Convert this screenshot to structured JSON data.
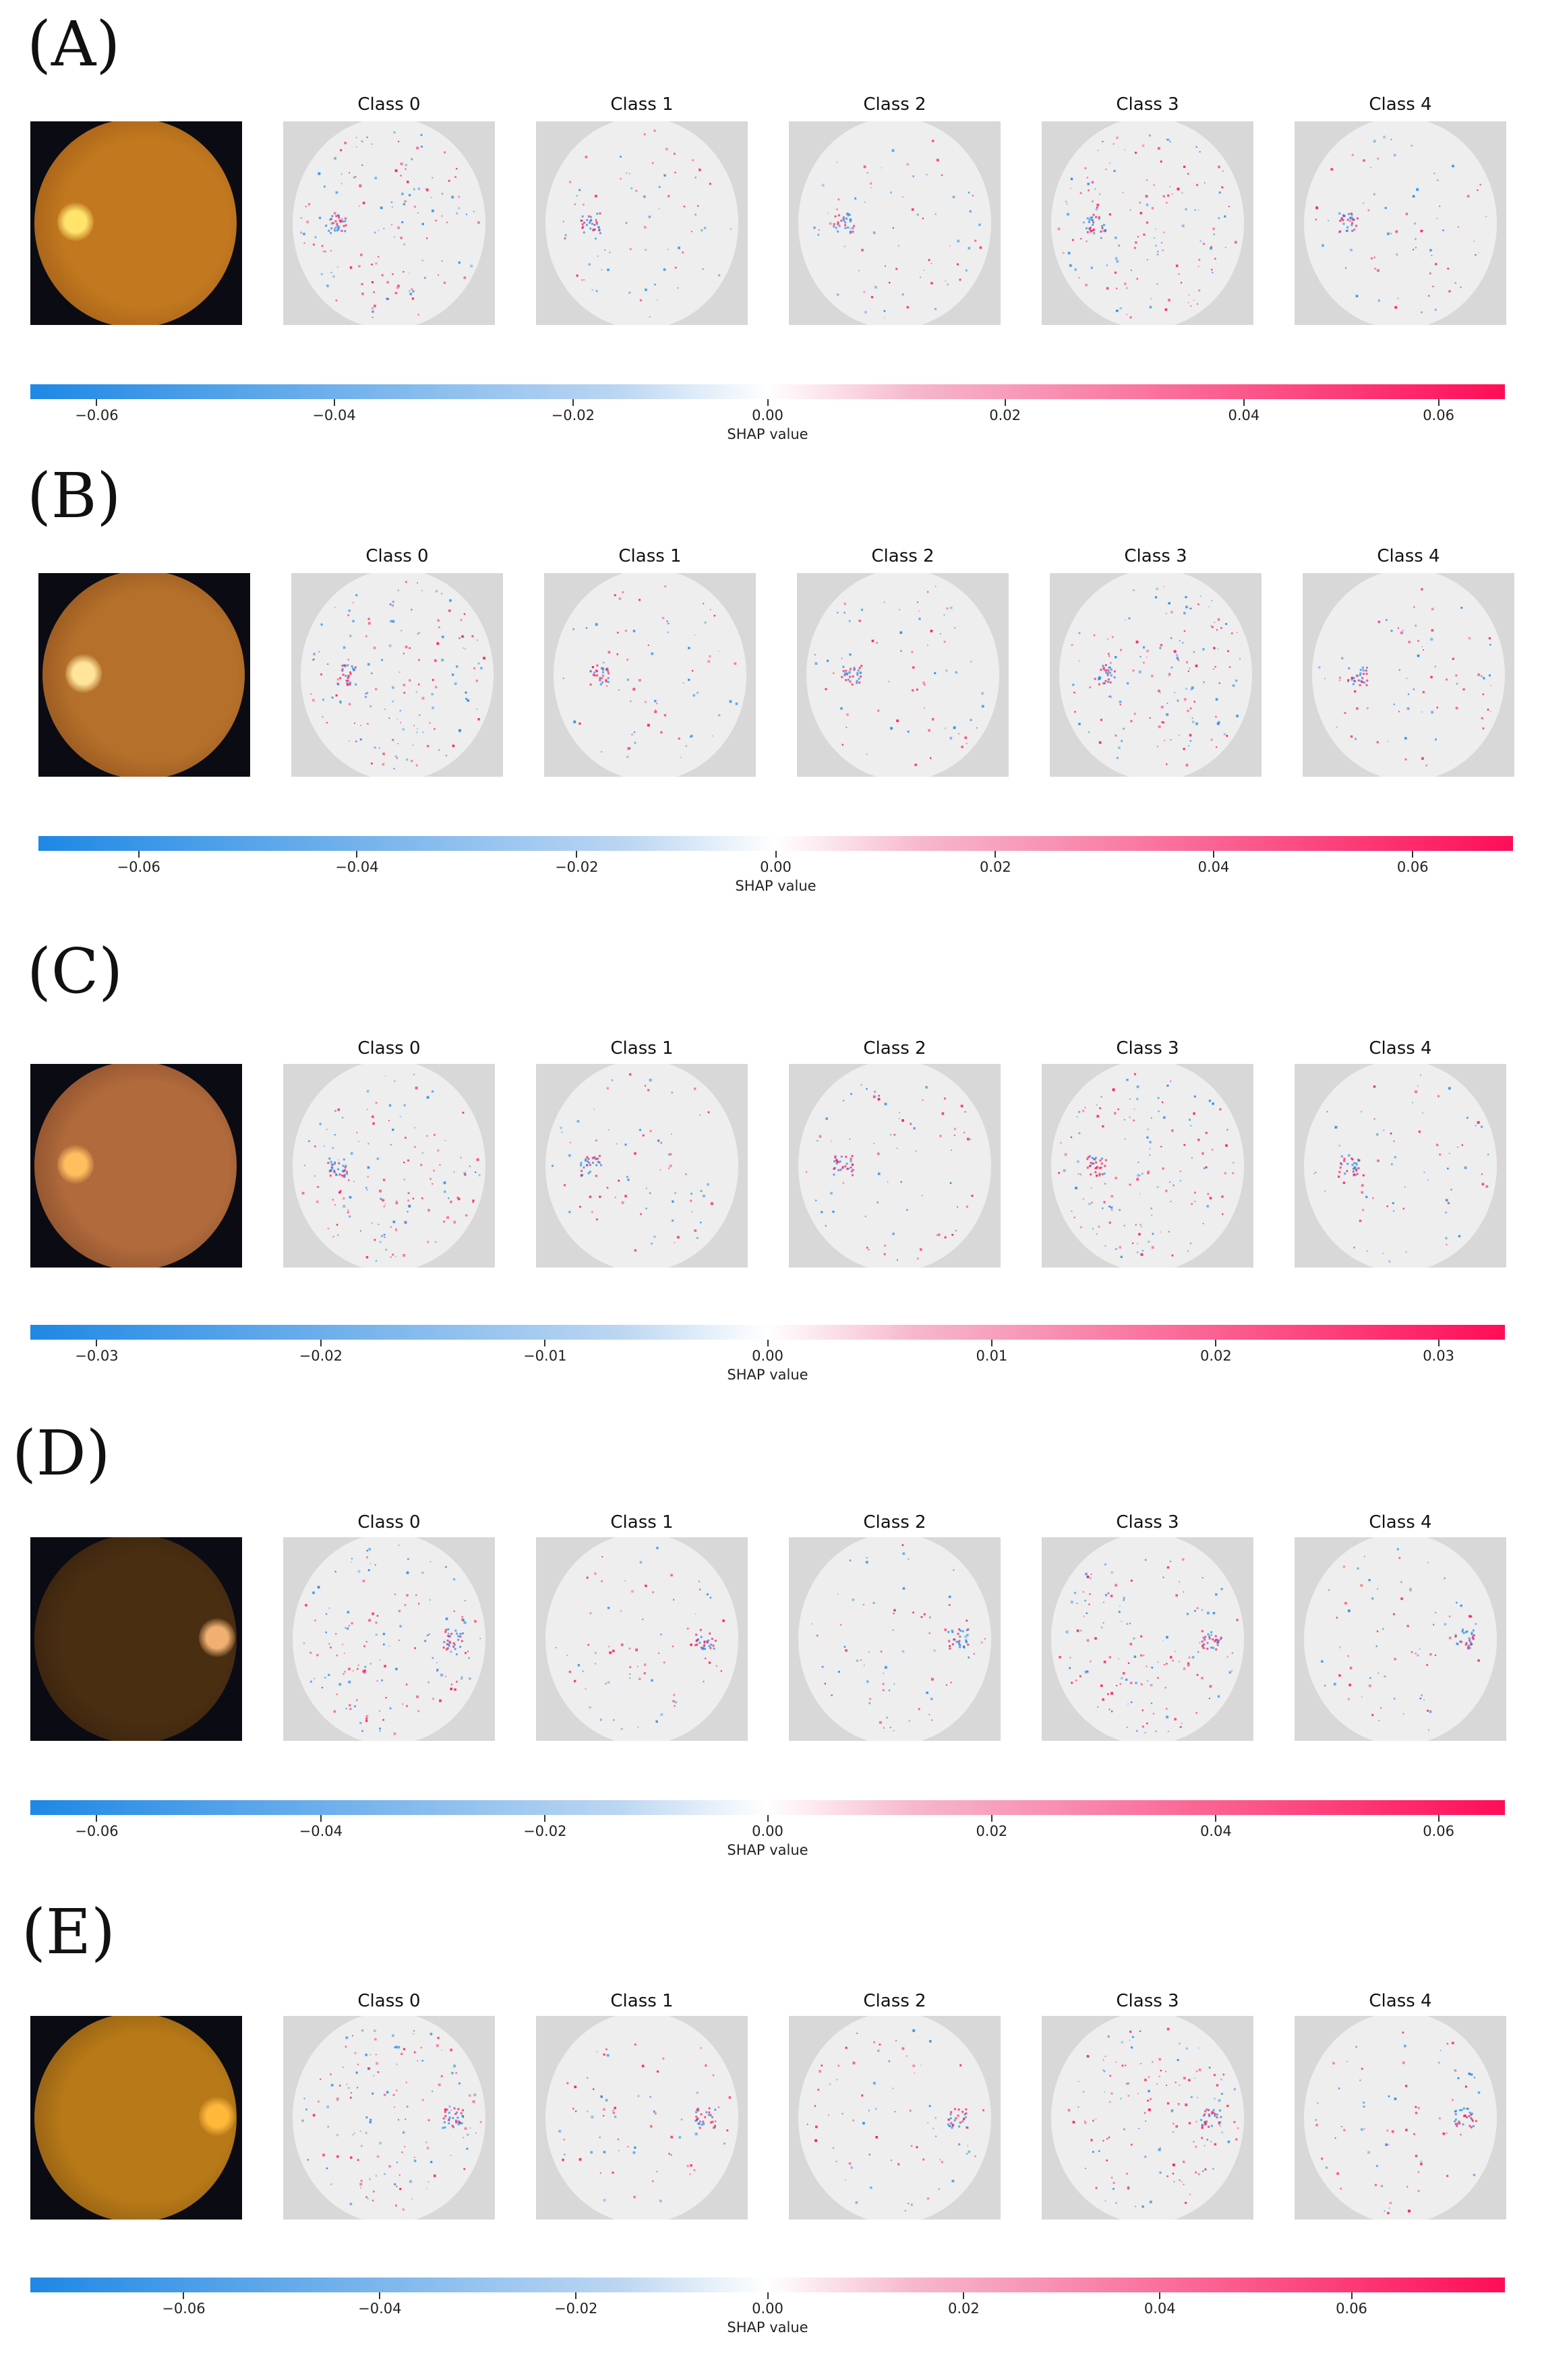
{
  "panels": [
    {
      "label": "(A)",
      "fundus": {
        "tone": "#c1781f",
        "tone_edge": "#8a4c12",
        "optic_color": "#ffe36a",
        "optic_side": "left"
      },
      "class_titles": [
        "Class 0",
        "Class 1",
        "Class 2",
        "Class 3",
        "Class 4"
      ],
      "colorbar": {
        "title": "SHAP value",
        "ticks": [
          "−0.06",
          "−0.04",
          "−0.02",
          "0.00",
          "0.02",
          "0.04",
          "0.06"
        ],
        "range": [
          -0.0665,
          0.0665
        ]
      }
    },
    {
      "label": "(B)",
      "fundus": {
        "tone": "#b5702b",
        "tone_edge": "#7a4316",
        "optic_color": "#ffe59a",
        "optic_side": "left"
      },
      "class_titles": [
        "Class 0",
        "Class 1",
        "Class 2",
        "Class 3",
        "Class 4"
      ],
      "colorbar": {
        "title": "SHAP value",
        "ticks": [
          "−0.06",
          "−0.04",
          "−0.02",
          "0.00",
          "0.02",
          "0.04",
          "0.06"
        ],
        "range": [
          -0.0694,
          0.0694
        ]
      }
    },
    {
      "label": "(C)",
      "fundus": {
        "tone": "#b06a3c",
        "tone_edge": "#6f3a1e",
        "optic_color": "#ffbf5e",
        "optic_side": "left"
      },
      "class_titles": [
        "Class 0",
        "Class 1",
        "Class 2",
        "Class 3",
        "Class 4"
      ],
      "colorbar": {
        "title": "SHAP value",
        "ticks": [
          "−0.03",
          "−0.02",
          "−0.01",
          "0.00",
          "0.01",
          "0.02",
          "0.03"
        ],
        "range": [
          -0.033,
          0.033
        ]
      }
    },
    {
      "label": "(D)",
      "fundus": {
        "tone": "#4a2e12",
        "tone_edge": "#2a1a0a",
        "optic_color": "#f0b070",
        "optic_side": "right"
      },
      "class_titles": [
        "Class 0",
        "Class 1",
        "Class 2",
        "Class 3",
        "Class 4"
      ],
      "colorbar": {
        "title": "SHAP value",
        "ticks": [
          "−0.06",
          "−0.04",
          "−0.02",
          "0.00",
          "0.02",
          "0.04",
          "0.06"
        ],
        "range": [
          -0.066,
          0.066
        ]
      }
    },
    {
      "label": "(E)",
      "fundus": {
        "tone": "#b87a18",
        "tone_edge": "#6e4510",
        "optic_color": "#ffb83a",
        "optic_side": "right"
      },
      "class_titles": [
        "Class 0",
        "Class 1",
        "Class 2",
        "Class 3",
        "Class 4"
      ],
      "colorbar": {
        "title": "SHAP value",
        "ticks": [
          "−0.06",
          "−0.04",
          "−0.02",
          "0.00",
          "0.02",
          "0.04",
          "0.06"
        ],
        "range": [
          -0.0755,
          0.0755
        ]
      }
    }
  ],
  "colors": {
    "negative": "#1e88e5",
    "positive": "#ff0d57",
    "background": "#d8d8d8"
  }
}
